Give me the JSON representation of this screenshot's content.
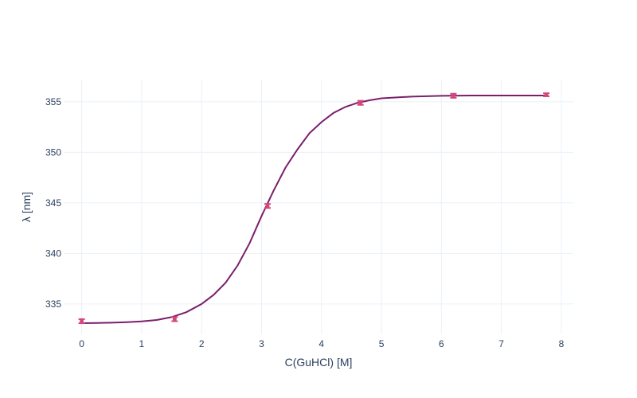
{
  "chart_data": {
    "type": "line",
    "xlabel": "C(GuHCl) [M]",
    "ylabel": "λ [nm]",
    "xlim": [
      -0.3,
      8.2
    ],
    "ylim": [
      332.0,
      357.2
    ],
    "xticks": [
      0,
      1,
      2,
      3,
      4,
      5,
      6,
      7,
      8
    ],
    "yticks": [
      335,
      340,
      345,
      350,
      355
    ],
    "grid": true,
    "legend": "none",
    "colors": {
      "line": "#7a1f6b",
      "points": "#d6457a",
      "grid": "#ebf0f8",
      "text": "#2a3f5f"
    },
    "series": [
      {
        "type": "line",
        "x": [
          0,
          0.25,
          0.5,
          0.75,
          1.0,
          1.25,
          1.5,
          1.75,
          2.0,
          2.2,
          2.4,
          2.6,
          2.8,
          3.0,
          3.2,
          3.4,
          3.6,
          3.8,
          4.0,
          4.2,
          4.4,
          4.6,
          4.8,
          5.0,
          5.5,
          6.0,
          6.5,
          7.0,
          7.5,
          7.75
        ],
        "y": [
          333.1,
          333.12,
          333.15,
          333.2,
          333.28,
          333.42,
          333.7,
          334.2,
          335.0,
          335.9,
          337.1,
          338.8,
          341.0,
          343.7,
          346.2,
          348.5,
          350.3,
          351.9,
          353.0,
          353.9,
          354.5,
          354.9,
          355.15,
          355.35,
          355.52,
          355.6,
          355.62,
          355.63,
          355.63,
          355.63
        ]
      },
      {
        "type": "scatter",
        "x": [
          0,
          1.55,
          3.1,
          4.65,
          6.2,
          7.75
        ],
        "y": [
          333.3,
          333.5,
          344.7,
          354.9,
          355.6,
          355.7
        ],
        "error": [
          0.2,
          0.2,
          0.2,
          0.2,
          0.2,
          0.15
        ]
      }
    ]
  }
}
